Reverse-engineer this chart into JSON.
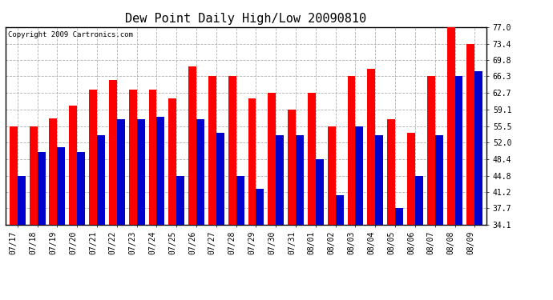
{
  "title": "Dew Point Daily High/Low 20090810",
  "copyright": "Copyright 2009 Cartronics.com",
  "dates": [
    "07/17",
    "07/18",
    "07/19",
    "07/20",
    "07/21",
    "07/22",
    "07/23",
    "07/24",
    "07/25",
    "07/26",
    "07/27",
    "07/28",
    "07/29",
    "07/30",
    "07/31",
    "08/01",
    "08/02",
    "08/03",
    "08/04",
    "08/05",
    "08/06",
    "08/07",
    "08/08",
    "08/09"
  ],
  "highs": [
    55.5,
    55.5,
    57.2,
    60.0,
    63.5,
    65.5,
    63.5,
    63.5,
    61.5,
    68.5,
    66.3,
    66.3,
    61.5,
    62.7,
    59.1,
    62.7,
    55.5,
    66.3,
    68.0,
    57.0,
    54.0,
    66.3,
    77.0,
    73.4
  ],
  "lows": [
    44.8,
    50.0,
    51.0,
    50.0,
    53.5,
    57.0,
    57.0,
    57.5,
    44.8,
    57.0,
    54.0,
    44.8,
    42.0,
    53.5,
    53.5,
    48.4,
    40.5,
    55.5,
    53.5,
    37.7,
    44.8,
    53.5,
    66.3,
    67.5
  ],
  "yticks": [
    34.1,
    37.7,
    41.2,
    44.8,
    48.4,
    52.0,
    55.5,
    59.1,
    62.7,
    66.3,
    69.8,
    73.4,
    77.0
  ],
  "ymin": 34.1,
  "ymax": 77.0,
  "bar_color_high": "#ff0000",
  "bar_color_low": "#0000cc",
  "background_color": "#ffffff",
  "grid_color": "#b0b0b0",
  "title_fontsize": 11,
  "tick_fontsize": 7,
  "copyright_fontsize": 6.5
}
